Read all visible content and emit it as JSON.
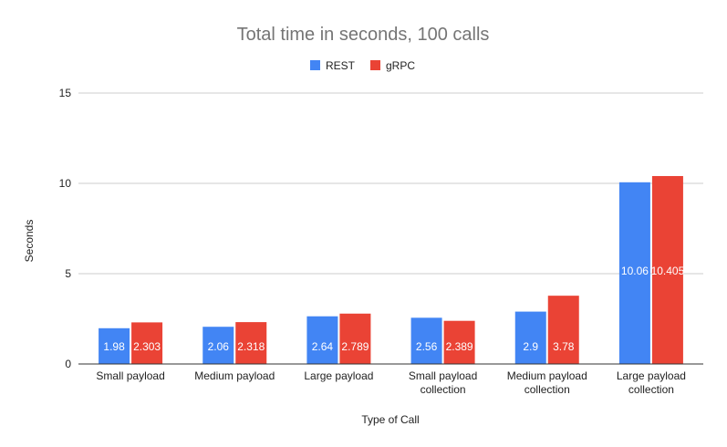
{
  "chart_data": {
    "type": "bar",
    "title": "Total time in seconds, 100 calls",
    "xlabel": "Type of Call",
    "ylabel": "Seconds",
    "ylim": [
      0,
      15
    ],
    "yticks": [
      0,
      5,
      10,
      15
    ],
    "grid": true,
    "legend_position": "top",
    "categories": [
      [
        "Small payload"
      ],
      [
        "Medium payload"
      ],
      [
        "Large payload"
      ],
      [
        "Small payload",
        "collection"
      ],
      [
        "Medium payload",
        "collection"
      ],
      [
        "Large payload",
        "collection"
      ]
    ],
    "series": [
      {
        "name": "REST",
        "color": "#4285f4",
        "values": [
          1.98,
          2.06,
          2.64,
          2.56,
          2.9,
          10.06
        ]
      },
      {
        "name": "gRPC",
        "color": "#ea4335",
        "values": [
          2.303,
          2.318,
          2.789,
          2.389,
          3.78,
          10.405
        ]
      }
    ]
  }
}
